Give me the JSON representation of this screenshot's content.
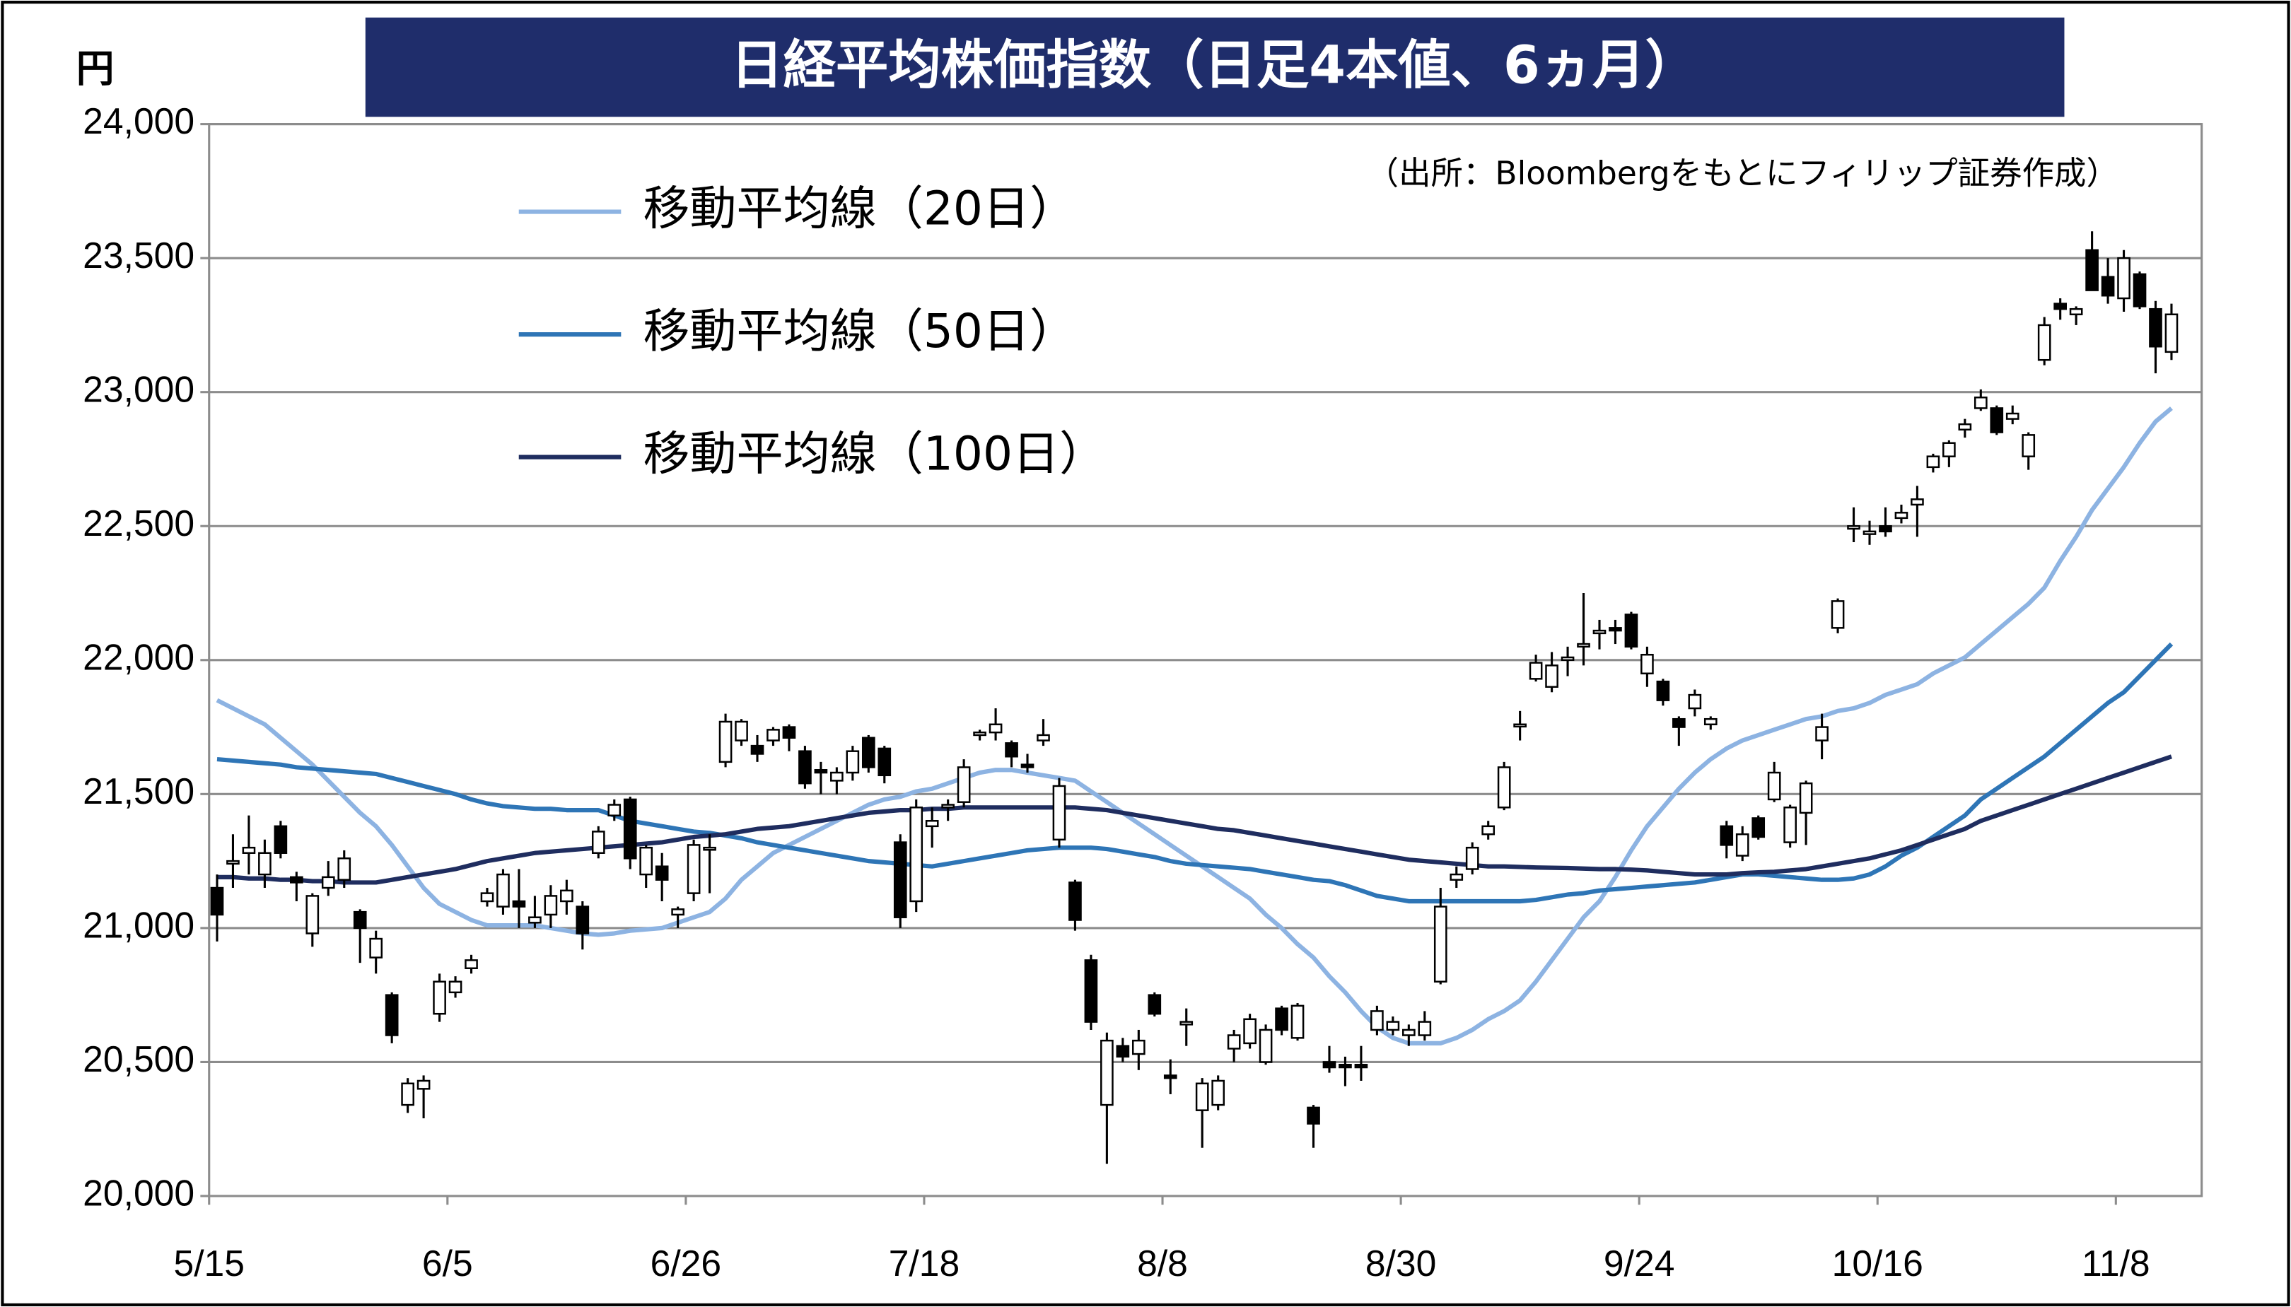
{
  "chart_data": {
    "type": "candlestick",
    "title": "日経平均株価指数（日足4本値、6ヵ月）",
    "y_unit": "円",
    "source": "（出所：Bloombergをもとにフィリップ証券作成）",
    "categories": [
      "5/15",
      null,
      null,
      null,
      null,
      null,
      null,
      null,
      null,
      null,
      null,
      null,
      null,
      null,
      null,
      "6/5",
      null,
      null,
      null,
      null,
      null,
      null,
      null,
      null,
      null,
      null,
      null,
      null,
      null,
      null,
      "6/26",
      null,
      null,
      null,
      null,
      null,
      null,
      null,
      null,
      null,
      null,
      null,
      null,
      null,
      null,
      "7/18",
      null,
      null,
      null,
      null,
      null,
      null,
      null,
      null,
      null,
      null,
      null,
      null,
      null,
      null,
      "8/8",
      null,
      null,
      null,
      null,
      null,
      null,
      null,
      null,
      null,
      null,
      null,
      null,
      null,
      null,
      "8/30",
      null,
      null,
      null,
      null,
      null,
      null,
      null,
      null,
      null,
      null,
      null,
      null,
      null,
      null,
      "9/24",
      null,
      null,
      null,
      null,
      null,
      null,
      null,
      null,
      null,
      null,
      null,
      null,
      null,
      null,
      "10/16",
      null,
      null,
      null,
      null,
      null,
      null,
      null,
      null,
      null,
      null,
      null,
      null,
      null,
      null,
      "11/8",
      null,
      null,
      null
    ],
    "open": [
      21150,
      21240,
      21280,
      21200,
      21380,
      21190,
      20980,
      21150,
      21180,
      21060,
      20890,
      20750,
      20340,
      20400,
      20680,
      20760,
      20850,
      21100,
      21080,
      21100,
      21020,
      21050,
      21100,
      21080,
      21280,
      21420,
      21480,
      21200,
      21230,
      21050,
      21130,
      21300,
      21620,
      21700,
      21680,
      21700,
      21750,
      21660,
      21590,
      21550,
      21580,
      21710,
      21670,
      21320,
      21100,
      21380,
      21450,
      21470,
      21720,
      21730,
      21690,
      21610,
      21700,
      21330,
      21170,
      20880,
      20340,
      20560,
      20530,
      20750,
      20450,
      20640,
      20320,
      20340,
      20550,
      20570,
      20500,
      20700,
      20590,
      20330,
      20500,
      20490,
      20490,
      20620,
      20620,
      20600,
      20600,
      20800,
      21180,
      21220,
      21350,
      21450,
      21760,
      21930,
      21900,
      22000,
      22050,
      22100,
      22120,
      22170,
      21950,
      21920,
      21780,
      21820,
      21760,
      21380,
      21270,
      21410,
      21480,
      21320,
      21430,
      21700,
      22120,
      22490,
      22470,
      22500,
      22530,
      22580,
      22720,
      22760,
      22860,
      22940,
      22940,
      22900,
      22760,
      23120,
      23330,
      23290,
      23530,
      23430,
      23350,
      23440,
      23310,
      23150
    ],
    "high": [
      21200,
      21350,
      21420,
      21330,
      21400,
      21210,
      21130,
      21250,
      21290,
      21070,
      20990,
      20760,
      20440,
      20450,
      20830,
      20820,
      20900,
      21150,
      21220,
      21220,
      21120,
      21160,
      21180,
      21100,
      21380,
      21480,
      21490,
      21310,
      21280,
      21080,
      21330,
      21350,
      21800,
      21780,
      21720,
      21750,
      21760,
      21680,
      21620,
      21600,
      21680,
      21720,
      21680,
      21350,
      21480,
      21450,
      21480,
      21630,
      21740,
      21820,
      21700,
      21650,
      21780,
      21560,
      21180,
      20900,
      20610,
      20590,
      20620,
      20760,
      20510,
      20700,
      20440,
      20450,
      20620,
      20680,
      20640,
      20710,
      20720,
      20340,
      20560,
      20520,
      20560,
      20710,
      20670,
      20640,
      20690,
      21150,
      21230,
      21320,
      21400,
      21620,
      21810,
      22020,
      22030,
      22050,
      22250,
      22150,
      22150,
      22180,
      22050,
      21930,
      21790,
      21890,
      21790,
      21400,
      21380,
      21420,
      21620,
      21460,
      21550,
      21800,
      22230,
      22570,
      22520,
      22570,
      22580,
      22650,
      22770,
      22820,
      22900,
      23010,
      22950,
      22950,
      22850,
      23280,
      23350,
      23320,
      23600,
      23500,
      23530,
      23450,
      23340,
      23330
    ],
    "low": [
      20950,
      21150,
      21200,
      21150,
      21260,
      21100,
      20930,
      21120,
      21150,
      20870,
      20830,
      20570,
      20310,
      20290,
      20650,
      20740,
      20830,
      21080,
      21050,
      21000,
      21000,
      21000,
      21050,
      20920,
      21260,
      21400,
      21220,
      21150,
      21100,
      21000,
      21100,
      21130,
      21600,
      21680,
      21620,
      21680,
      21660,
      21520,
      21500,
      21500,
      21550,
      21580,
      21540,
      21000,
      21060,
      21300,
      21400,
      21450,
      21700,
      21700,
      21600,
      21580,
      21680,
      21300,
      20990,
      20620,
      20120,
      20500,
      20470,
      20670,
      20380,
      20560,
      20180,
      20320,
      20500,
      20550,
      20490,
      20600,
      20580,
      20180,
      20460,
      20410,
      20430,
      20600,
      20600,
      20560,
      20580,
      20790,
      21150,
      21200,
      21330,
      21440,
      21700,
      21920,
      21880,
      21940,
      21980,
      22040,
      22060,
      22040,
      21900,
      21830,
      21680,
      21790,
      21740,
      21260,
      21250,
      21330,
      21470,
      21300,
      21310,
      21630,
      22100,
      22440,
      22430,
      22460,
      22510,
      22460,
      22700,
      22720,
      22830,
      22930,
      22840,
      22880,
      22710,
      23100,
      23270,
      23250,
      23380,
      23330,
      23300,
      23310,
      23070,
      23120
    ],
    "close": [
      21050,
      21250,
      21300,
      21280,
      21280,
      21170,
      21120,
      21190,
      21260,
      21000,
      20960,
      20600,
      20420,
      20430,
      20800,
      20800,
      20880,
      21130,
      21200,
      21080,
      21040,
      21120,
      21140,
      20980,
      21360,
      21460,
      21260,
      21300,
      21180,
      21070,
      21310,
      21300,
      21770,
      21770,
      21650,
      21740,
      21710,
      21540,
      21580,
      21580,
      21660,
      21600,
      21570,
      21040,
      21450,
      21400,
      21460,
      21600,
      21730,
      21760,
      21640,
      21600,
      21720,
      21530,
      21030,
      20650,
      20580,
      20520,
      20580,
      20680,
      20440,
      20650,
      20420,
      20430,
      20600,
      20660,
      20620,
      20620,
      20710,
      20270,
      20480,
      20480,
      20480,
      20690,
      20650,
      20620,
      20650,
      21080,
      21200,
      21300,
      21380,
      21600,
      21760,
      21990,
      21980,
      22010,
      22060,
      22110,
      22110,
      22050,
      22020,
      21850,
      21750,
      21870,
      21780,
      21310,
      21350,
      21340,
      21580,
      21450,
      21540,
      21750,
      22220,
      22500,
      22480,
      22480,
      22550,
      22600,
      22760,
      22810,
      22880,
      22980,
      22850,
      22920,
      22840,
      23250,
      23310,
      23310,
      23380,
      23360,
      23500,
      23320,
      23170,
      23290
    ],
    "up_color": "#ffffff",
    "down_color": "#000000",
    "series": [
      {
        "name": "移動平均線（20日）",
        "color": "#8db3e2",
        "values": [
          21850,
          21820,
          21790,
          21760,
          21710,
          21660,
          21610,
          21550,
          21490,
          21430,
          21380,
          21310,
          21230,
          21150,
          21090,
          21060,
          21030,
          21010,
          21010,
          21010,
          21010,
          21000,
          20990,
          20980,
          20975,
          20980,
          20990,
          20995,
          21000,
          21020,
          21040,
          21060,
          21110,
          21180,
          21230,
          21280,
          21310,
          21340,
          21370,
          21400,
          21430,
          21460,
          21480,
          21490,
          21510,
          21520,
          21540,
          21560,
          21580,
          21590,
          21590,
          21580,
          21570,
          21560,
          21550,
          21510,
          21470,
          21430,
          21390,
          21350,
          21310,
          21270,
          21230,
          21190,
          21150,
          21110,
          21050,
          21000,
          20940,
          20890,
          20820,
          20760,
          20690,
          20630,
          20590,
          20570,
          20570,
          20570,
          20590,
          20620,
          20660,
          20690,
          20730,
          20800,
          20880,
          20960,
          21040,
          21100,
          21190,
          21290,
          21380,
          21450,
          21520,
          21580,
          21630,
          21670,
          21700,
          21720,
          21740,
          21760,
          21780,
          21790,
          21810,
          21820,
          21840,
          21870,
          21890,
          21910,
          21950,
          21980,
          22010,
          22060,
          22110,
          22160,
          22210,
          22270,
          22370,
          22460,
          22560,
          22640,
          22720,
          22810,
          22890,
          22940
        ]
      },
      {
        "name": "移動平均線（50日）",
        "color": "#2e75b6",
        "values": [
          21630,
          21625,
          21620,
          21615,
          21610,
          21600,
          21595,
          21590,
          21585,
          21580,
          21575,
          21560,
          21545,
          21530,
          21515,
          21500,
          21480,
          21465,
          21455,
          21450,
          21445,
          21445,
          21440,
          21440,
          21440,
          21420,
          21400,
          21390,
          21380,
          21370,
          21360,
          21355,
          21345,
          21335,
          21320,
          21310,
          21300,
          21290,
          21280,
          21270,
          21260,
          21250,
          21245,
          21240,
          21235,
          21230,
          21240,
          21250,
          21260,
          21270,
          21280,
          21290,
          21295,
          21300,
          21300,
          21300,
          21295,
          21285,
          21275,
          21265,
          21250,
          21240,
          21235,
          21230,
          21225,
          21220,
          21210,
          21200,
          21190,
          21180,
          21175,
          21160,
          21140,
          21120,
          21110,
          21100,
          21100,
          21100,
          21100,
          21100,
          21100,
          21100,
          21100,
          21105,
          21115,
          21125,
          21130,
          21140,
          21145,
          21150,
          21155,
          21160,
          21165,
          21170,
          21180,
          21190,
          21200,
          21200,
          21195,
          21190,
          21185,
          21180,
          21180,
          21185,
          21200,
          21230,
          21270,
          21300,
          21340,
          21380,
          21420,
          21480,
          21520,
          21560,
          21600,
          21640,
          21690,
          21740,
          21790,
          21840,
          21880,
          21940,
          22000,
          22060
        ]
      },
      {
        "name": "移動平均線（100日）",
        "color": "#1f2d5f",
        "values": [
          21190,
          21190,
          21185,
          21185,
          21180,
          21180,
          21175,
          21175,
          21170,
          21170,
          21170,
          21180,
          21190,
          21200,
          21210,
          21220,
          21235,
          21250,
          21260,
          21270,
          21280,
          21285,
          21290,
          21295,
          21300,
          21305,
          21310,
          21315,
          21320,
          21330,
          21340,
          21345,
          21350,
          21360,
          21370,
          21375,
          21380,
          21390,
          21400,
          21410,
          21420,
          21430,
          21435,
          21440,
          21440,
          21445,
          21445,
          21450,
          21450,
          21450,
          21450,
          21450,
          21450,
          21450,
          21450,
          21445,
          21440,
          21430,
          21420,
          21410,
          21400,
          21390,
          21380,
          21370,
          21365,
          21355,
          21345,
          21335,
          21325,
          21315,
          21305,
          21295,
          21285,
          21275,
          21265,
          21255,
          21250,
          21245,
          21240,
          21235,
          21230,
          21230,
          21228,
          21226,
          21225,
          21224,
          21222,
          21220,
          21220,
          21218,
          21215,
          21210,
          21205,
          21200,
          21200,
          21200,
          21205,
          21208,
          21210,
          21215,
          21220,
          21230,
          21240,
          21250,
          21260,
          21275,
          21290,
          21310,
          21330,
          21350,
          21370,
          21400,
          21420,
          21440,
          21460,
          21480,
          21500,
          21520,
          21540,
          21560,
          21580,
          21600,
          21620,
          21640
        ]
      }
    ],
    "ylim": [
      20000,
      24000
    ],
    "yticks": [
      {
        "value": 20000,
        "label": "20,000"
      },
      {
        "value": 20500,
        "label": "20,500"
      },
      {
        "value": 21000,
        "label": "21,000"
      },
      {
        "value": 21500,
        "label": "21,500"
      },
      {
        "value": 22000,
        "label": "22,000"
      },
      {
        "value": 22500,
        "label": "22,500"
      },
      {
        "value": 23000,
        "label": "23,000"
      },
      {
        "value": 23500,
        "label": "23,500"
      },
      {
        "value": 24000,
        "label": "24,000"
      }
    ],
    "grid": true
  }
}
